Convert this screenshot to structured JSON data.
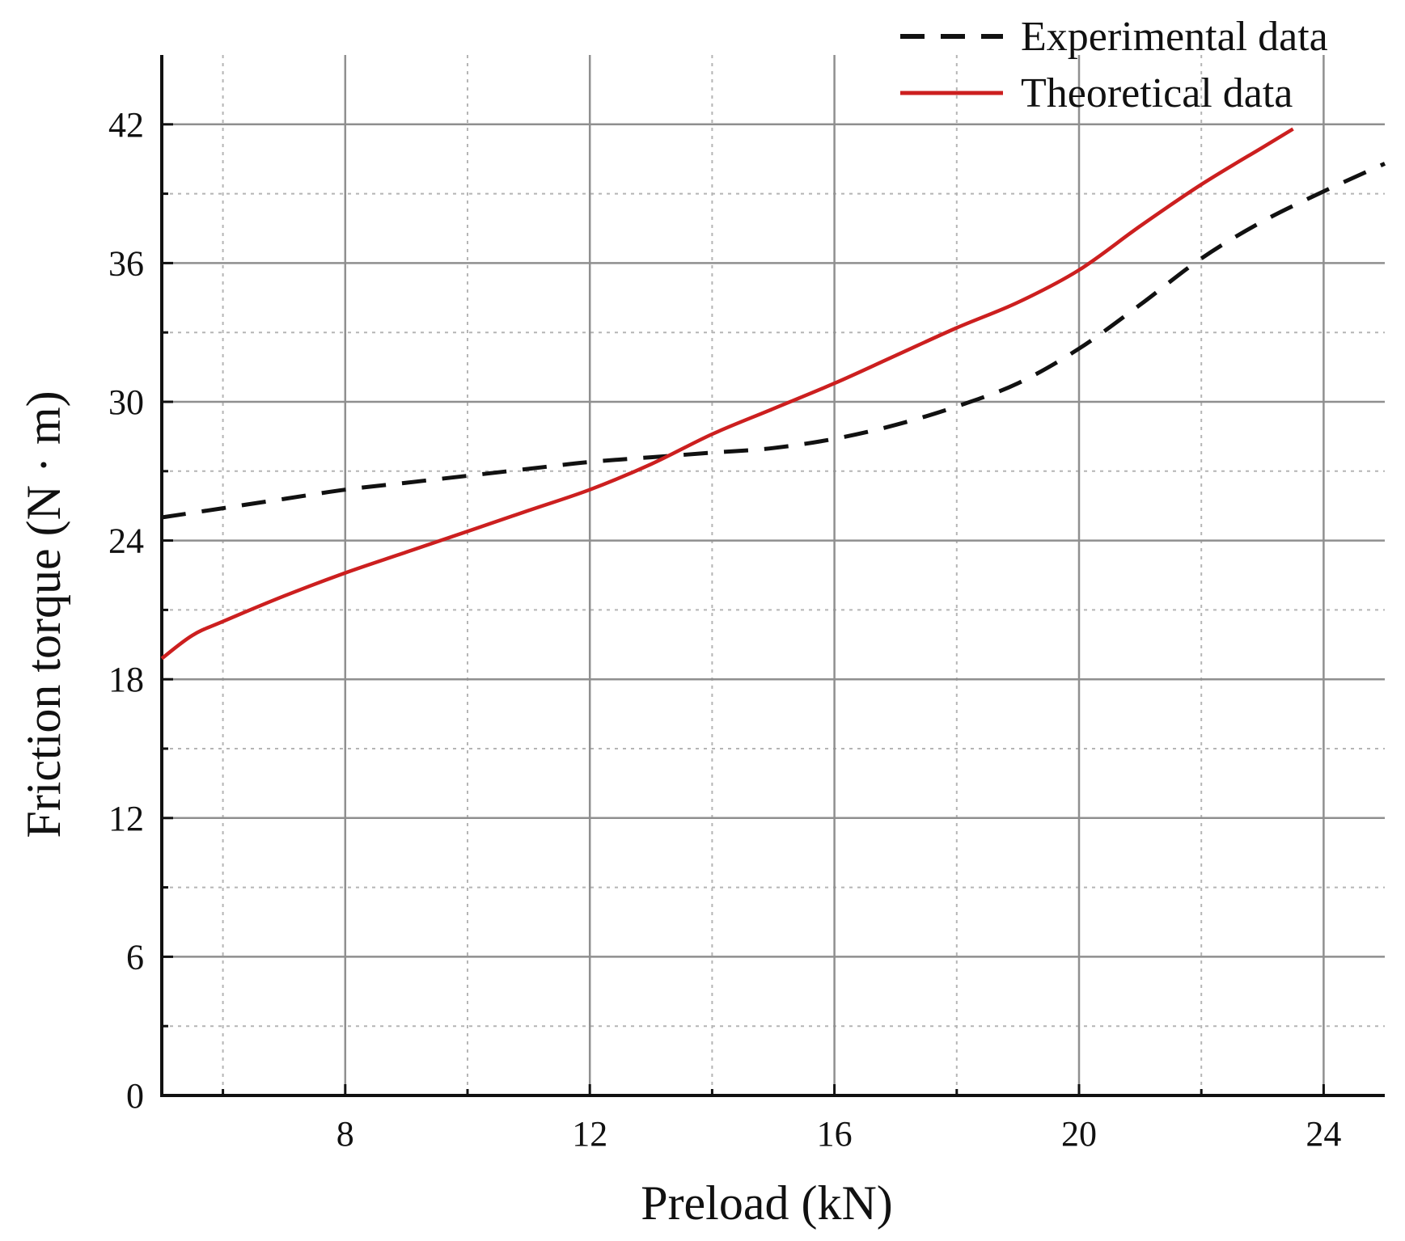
{
  "chart_data": {
    "type": "line",
    "title": "",
    "xlabel": "Preload (kN)",
    "ylabel": "Friction torque (N · m)",
    "xlim": [
      5,
      25
    ],
    "ylim": [
      0,
      45
    ],
    "x_major_ticks": [
      8,
      12,
      16,
      20,
      24
    ],
    "x_minor_ticks": [
      6,
      10,
      14,
      18,
      22
    ],
    "y_major_ticks": [
      0,
      6,
      12,
      18,
      24,
      30,
      36,
      42
    ],
    "y_minor_ticks": [
      3,
      9,
      15,
      21,
      27,
      33,
      39
    ],
    "x_tick_labels": [
      "8",
      "12",
      "16",
      "20",
      "24"
    ],
    "y_tick_labels": [
      "0",
      "6",
      "12",
      "18",
      "24",
      "30",
      "36",
      "42"
    ],
    "grid": true,
    "legend_position": "top-right",
    "series": [
      {
        "name": "Experimental data",
        "style": "dashed",
        "color": "#111111",
        "x": [
          5,
          6,
          7,
          8,
          9,
          10,
          11,
          12,
          13,
          14,
          15,
          16,
          17,
          18,
          19,
          20,
          21,
          22,
          23,
          24,
          25
        ],
        "y": [
          25.0,
          25.4,
          25.8,
          26.2,
          26.5,
          26.8,
          27.1,
          27.4,
          27.6,
          27.8,
          28.0,
          28.4,
          29.0,
          29.8,
          30.8,
          32.3,
          34.2,
          36.2,
          37.8,
          39.1,
          40.3
        ]
      },
      {
        "name": "Theoretical data",
        "style": "solid",
        "color": "#cc1f1f",
        "x": [
          5,
          5.5,
          6,
          7,
          8,
          9,
          10,
          11,
          12,
          13,
          14,
          15,
          16,
          17,
          18,
          19,
          20,
          21,
          22,
          23,
          23.5
        ],
        "y": [
          18.9,
          19.9,
          20.5,
          21.6,
          22.6,
          23.5,
          24.4,
          25.3,
          26.2,
          27.3,
          28.6,
          29.7,
          30.8,
          32.0,
          33.2,
          34.3,
          35.7,
          37.6,
          39.4,
          41.0,
          41.8
        ]
      }
    ]
  }
}
